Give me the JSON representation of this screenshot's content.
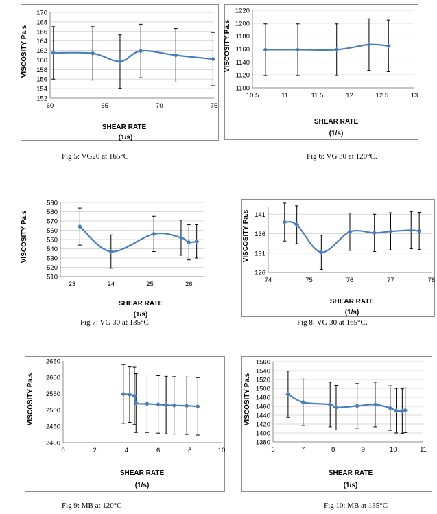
{
  "colors": {
    "series": "#4a7ebb",
    "grid": "#d9d9d9",
    "error": "#000000"
  },
  "captions": [
    "Fig 5: VG20 at 165°C",
    "Fig 6: VG 30 at 120°C.",
    "Fig 7: VG 30 at 135°C",
    "Fig 8: VG 30 at 165°C.",
    "Fig 9: MB at 120°C",
    "Fig 10: MB at 135°C"
  ],
  "chart_data": [
    {
      "type": "line",
      "xlabel": "SHEAR RATE",
      "xunit": "(1/s)",
      "ylabel": "VISCOSITY  Pa.s",
      "xlim": [
        60,
        75
      ],
      "xticks": [
        60,
        65,
        70,
        75
      ],
      "ylim": [
        152,
        170
      ],
      "yticks": [
        152,
        154,
        156,
        158,
        160,
        162,
        164,
        166,
        168,
        170
      ],
      "grid": true,
      "series": [
        {
          "x": [
            60.3,
            63.9,
            66.4,
            68.3,
            71.5,
            74.9
          ],
          "values": [
            161.5,
            161.4,
            159.7,
            161.9,
            161.0,
            160.2
          ],
          "error": [
            5.5,
            5.6,
            5.6,
            5.6,
            5.6,
            5.6
          ]
        }
      ]
    },
    {
      "type": "line",
      "xlabel": "SHEAR RATE",
      "xunit": "(1/s)",
      "ylabel": "VISCOSITY  Pa.s",
      "xlim": [
        10.5,
        13
      ],
      "xticks": [
        10.5,
        11,
        11.5,
        12,
        12.5,
        13
      ],
      "ylim": [
        1100,
        1220
      ],
      "yticks": [
        1100,
        1120,
        1140,
        1160,
        1180,
        1200,
        1220
      ],
      "grid": true,
      "series": [
        {
          "x": [
            10.7,
            11.2,
            11.8,
            12.3,
            12.6
          ],
          "values": [
            1159,
            1159,
            1159,
            1167,
            1165
          ],
          "error": [
            40,
            40,
            40,
            40,
            40
          ]
        }
      ]
    },
    {
      "type": "line",
      "xlabel": "SHEAR RATE",
      "xunit": "(1/s)",
      "ylabel": "VISCOSITY  Pa.s",
      "xlim": [
        22.7,
        26.4
      ],
      "xticks": [
        23,
        24,
        25,
        26
      ],
      "ylim": [
        510,
        590
      ],
      "yticks": [
        510,
        520,
        530,
        540,
        550,
        560,
        570,
        580,
        590
      ],
      "grid": true,
      "series": [
        {
          "x": [
            23.2,
            24.0,
            25.1,
            25.8,
            26.0,
            26.2
          ],
          "values": [
            564,
            537,
            556,
            552,
            547,
            548
          ],
          "error": [
            20,
            18,
            19,
            19,
            19,
            18
          ]
        }
      ]
    },
    {
      "type": "line",
      "xlabel": "SHEAR RATE",
      "xunit": "(1/s)",
      "ylabel": "VISCOSITY  Pa.s",
      "xlim": [
        74,
        78
      ],
      "xticks": [
        74,
        75,
        76,
        77,
        78
      ],
      "ylim": [
        126,
        143
      ],
      "yticks": [
        126,
        131,
        136,
        141
      ],
      "grid": true,
      "series": [
        {
          "x": [
            74.4,
            74.7,
            75.3,
            76.0,
            76.6,
            77.0,
            77.5,
            77.7
          ],
          "values": [
            139.0,
            138.3,
            131.2,
            136.5,
            136.2,
            136.6,
            136.9,
            136.7
          ],
          "error": [
            4.9,
            4.9,
            4.4,
            4.8,
            4.8,
            4.8,
            4.8,
            4.8
          ]
        }
      ]
    },
    {
      "type": "line",
      "xlabel": "SHEAR RATE",
      "xunit": "(1/s)",
      "ylabel": "VISCOSITY  Pa.s",
      "xlim": [
        0,
        10
      ],
      "xticks": [
        0,
        2,
        4,
        6,
        8,
        10
      ],
      "ylim": [
        2400,
        2650
      ],
      "yticks": [
        2400,
        2450,
        2500,
        2550,
        2600,
        2650
      ],
      "grid": false,
      "series": [
        {
          "x": [
            3.8,
            4.2,
            4.5,
            4.6,
            5.3,
            6.0,
            6.5,
            7.0,
            7.8,
            8.5
          ],
          "values": [
            2549,
            2547,
            2543,
            2521,
            2519,
            2517,
            2515,
            2514,
            2513,
            2511
          ],
          "error": [
            90,
            85,
            88,
            90,
            88,
            88,
            88,
            88,
            88,
            88
          ]
        }
      ]
    },
    {
      "type": "line",
      "xlabel": "SHEAR RATE",
      "xunit": "(1/s)",
      "ylabel": "VISCOSITY  Pa.s",
      "xlim": [
        6,
        11
      ],
      "xticks": [
        6,
        7,
        8,
        9,
        10,
        11
      ],
      "ylim": [
        1380,
        1560
      ],
      "yticks": [
        1380,
        1400,
        1420,
        1440,
        1460,
        1480,
        1500,
        1520,
        1540,
        1560
      ],
      "grid": true,
      "series": [
        {
          "x": [
            6.5,
            7.0,
            7.9,
            8.1,
            8.8,
            9.4,
            9.9,
            10.1,
            10.3,
            10.4
          ],
          "values": [
            1487,
            1469,
            1464,
            1457,
            1461,
            1464,
            1456,
            1450,
            1449,
            1451
          ],
          "error": [
            52,
            52,
            50,
            50,
            50,
            50,
            50,
            50,
            50,
            50
          ]
        }
      ]
    }
  ]
}
